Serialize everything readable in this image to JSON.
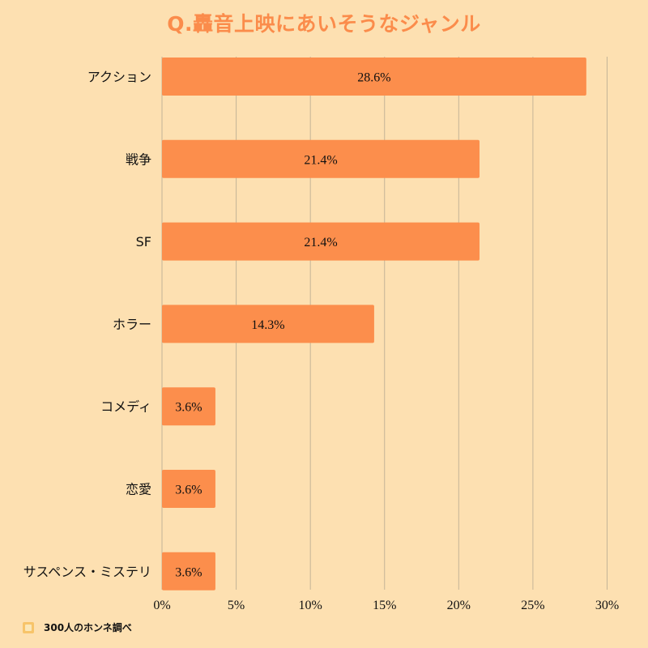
{
  "chart_data": {
    "type": "bar",
    "orientation": "horizontal",
    "title": "Q.轟音上映にあいそうなジャンル",
    "categories": [
      "アクション",
      "戦争",
      "SF",
      "ホラー",
      "コメディ",
      "恋愛",
      "サスペンス・ミステリ"
    ],
    "values": [
      28.6,
      21.4,
      21.4,
      14.3,
      3.6,
      3.6,
      3.6
    ],
    "value_labels": [
      "28.6%",
      "21.4%",
      "21.4%",
      "14.3%",
      "3.6%",
      "3.6%",
      "3.6%"
    ],
    "xlim": [
      0,
      30
    ],
    "x_ticks": [
      0,
      5,
      10,
      15,
      20,
      25,
      30
    ],
    "x_tick_labels": [
      "0%",
      "5%",
      "10%",
      "15%",
      "20%",
      "25%",
      "30%"
    ],
    "grid": true,
    "legend": "none",
    "colors": {
      "background": "#fde0b1",
      "bar": "#fc8e4c",
      "title": "#fb8c4b",
      "grid": "#c4b497"
    }
  },
  "footer": {
    "icon": "logo-icon",
    "text": "300人のホンネ調べ"
  }
}
